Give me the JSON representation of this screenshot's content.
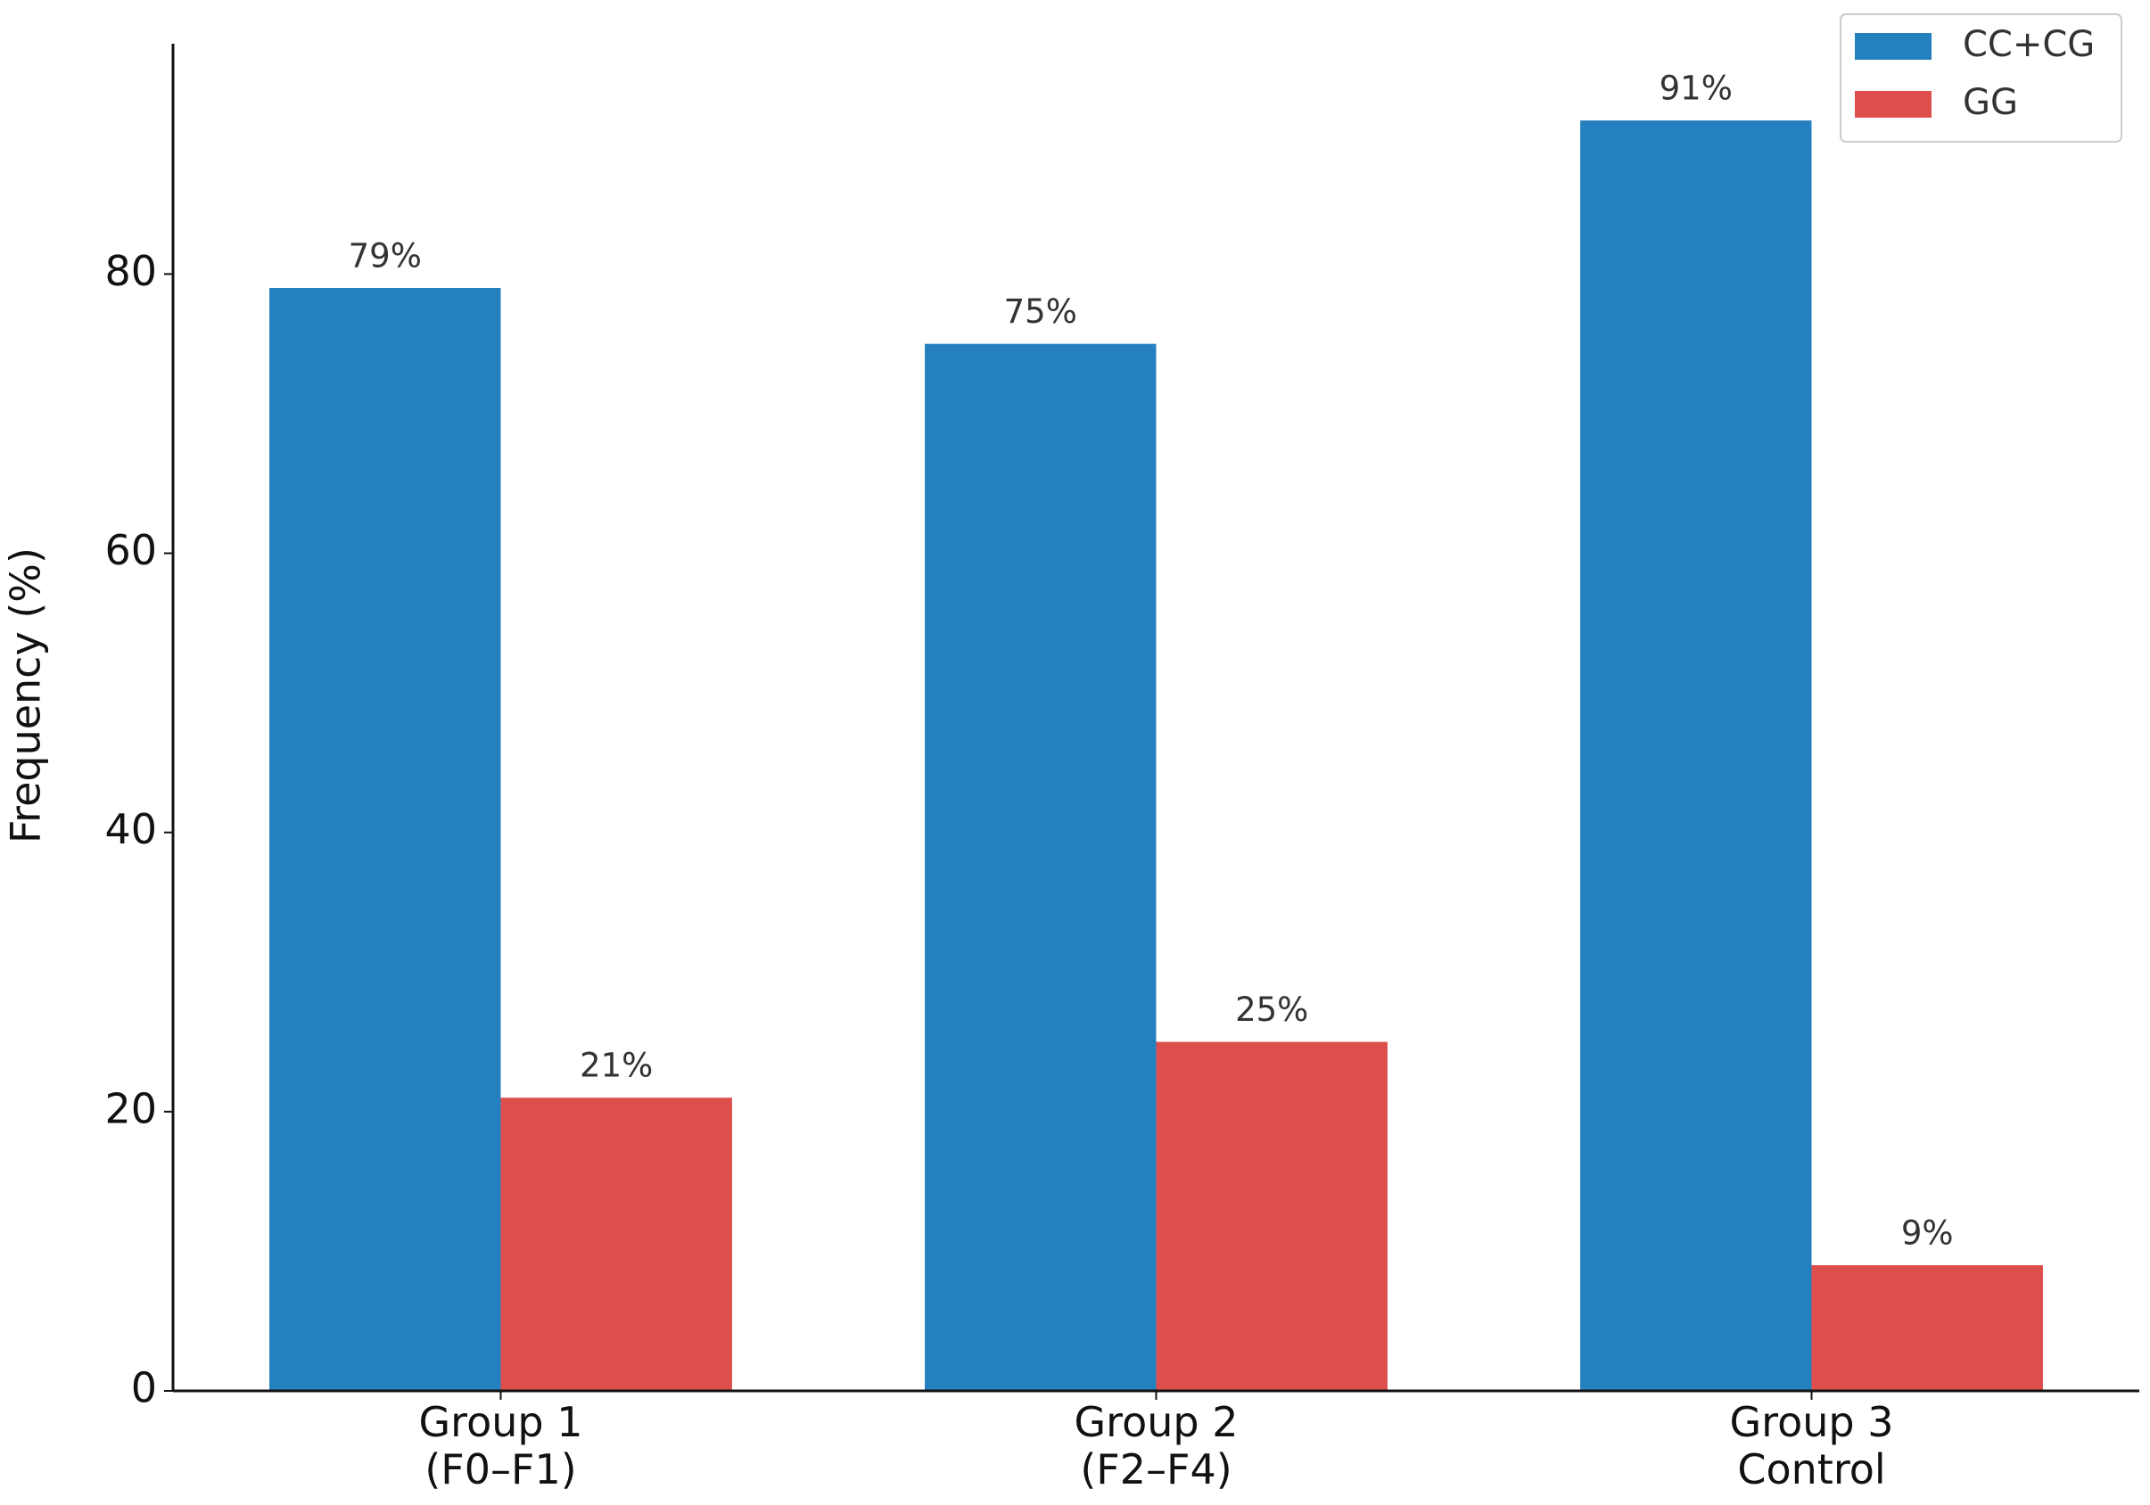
{
  "chart_data": {
    "type": "bar",
    "categories": [
      "Group 1\n(F0–F1)",
      "Group 2\n(F2–F4)",
      "Group 3\nControl"
    ],
    "series": [
      {
        "name": "CC+CG",
        "color": "#2580bf",
        "values": [
          79,
          75,
          91
        ],
        "value_labels": [
          "79%",
          "75%",
          "91%"
        ]
      },
      {
        "name": "GG",
        "color": "#dd4f4c",
        "values": [
          21,
          25,
          9
        ],
        "value_labels": [
          "21%",
          "25%",
          "9%"
        ]
      }
    ],
    "y_label": "Frequency (%)",
    "ylim": [
      0,
      96.5
    ],
    "yticks": [
      0,
      20,
      40,
      60,
      80
    ],
    "legend": "upper right",
    "grid": false
  }
}
